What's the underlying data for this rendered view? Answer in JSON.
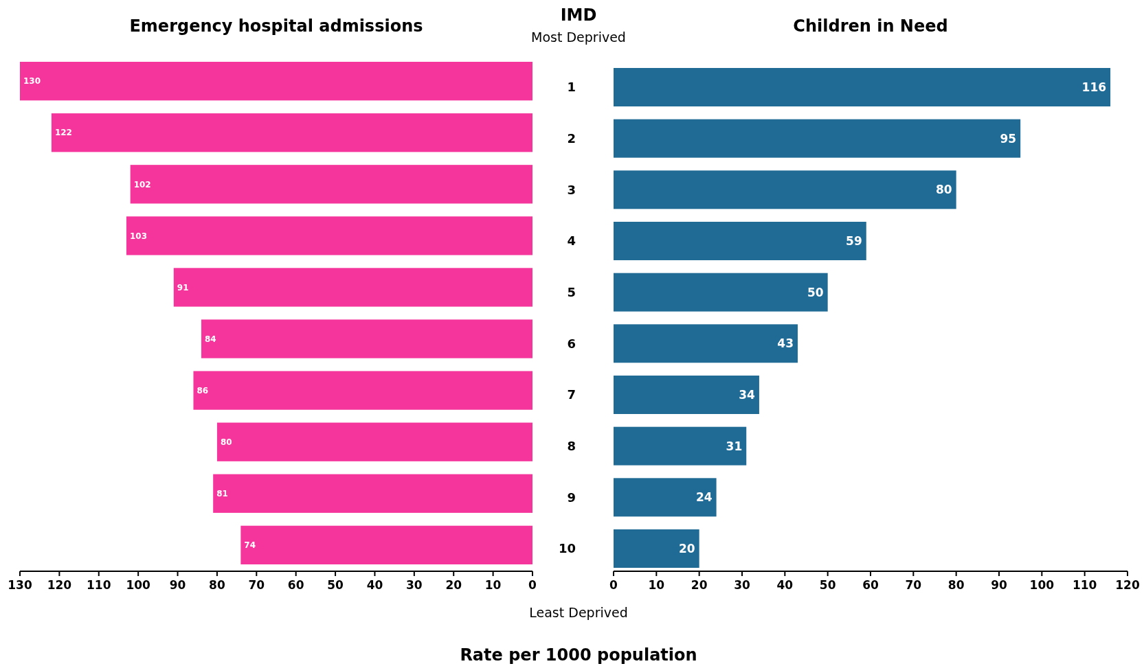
{
  "chart_data": [
    {
      "type": "bar",
      "orientation": "horizontal",
      "title": "Emergency hospital admissions",
      "categories": [
        "1",
        "2",
        "3",
        "4",
        "5",
        "6",
        "7",
        "8",
        "9",
        "10"
      ],
      "values": [
        130,
        122,
        102,
        103,
        91,
        84,
        86,
        80,
        81,
        74
      ],
      "color": "#f5359b",
      "xlim": [
        130,
        0
      ],
      "xticks": [
        130,
        120,
        110,
        100,
        90,
        80,
        70,
        60,
        50,
        40,
        30,
        20,
        10,
        0
      ],
      "data_labels": true,
      "tick_labels": "x"
    },
    {
      "type": "bar",
      "orientation": "horizontal",
      "title": "Children in Need",
      "ylabel": "IMD",
      "xlabel": "Rate per 1000 population",
      "annotations": [
        "Most Deprived",
        "Least Deprived"
      ],
      "categories": [
        "1",
        "2",
        "3",
        "4",
        "5",
        "6",
        "7",
        "8",
        "9",
        "10"
      ],
      "values": [
        116,
        95,
        80,
        59,
        50,
        43,
        34,
        31,
        24,
        20
      ],
      "color": "#1f6b96",
      "xlim": [
        0,
        120
      ],
      "xticks": [
        0,
        10,
        20,
        30,
        40,
        50,
        60,
        70,
        80,
        90,
        100,
        110,
        120
      ],
      "data_labels": true
    }
  ]
}
